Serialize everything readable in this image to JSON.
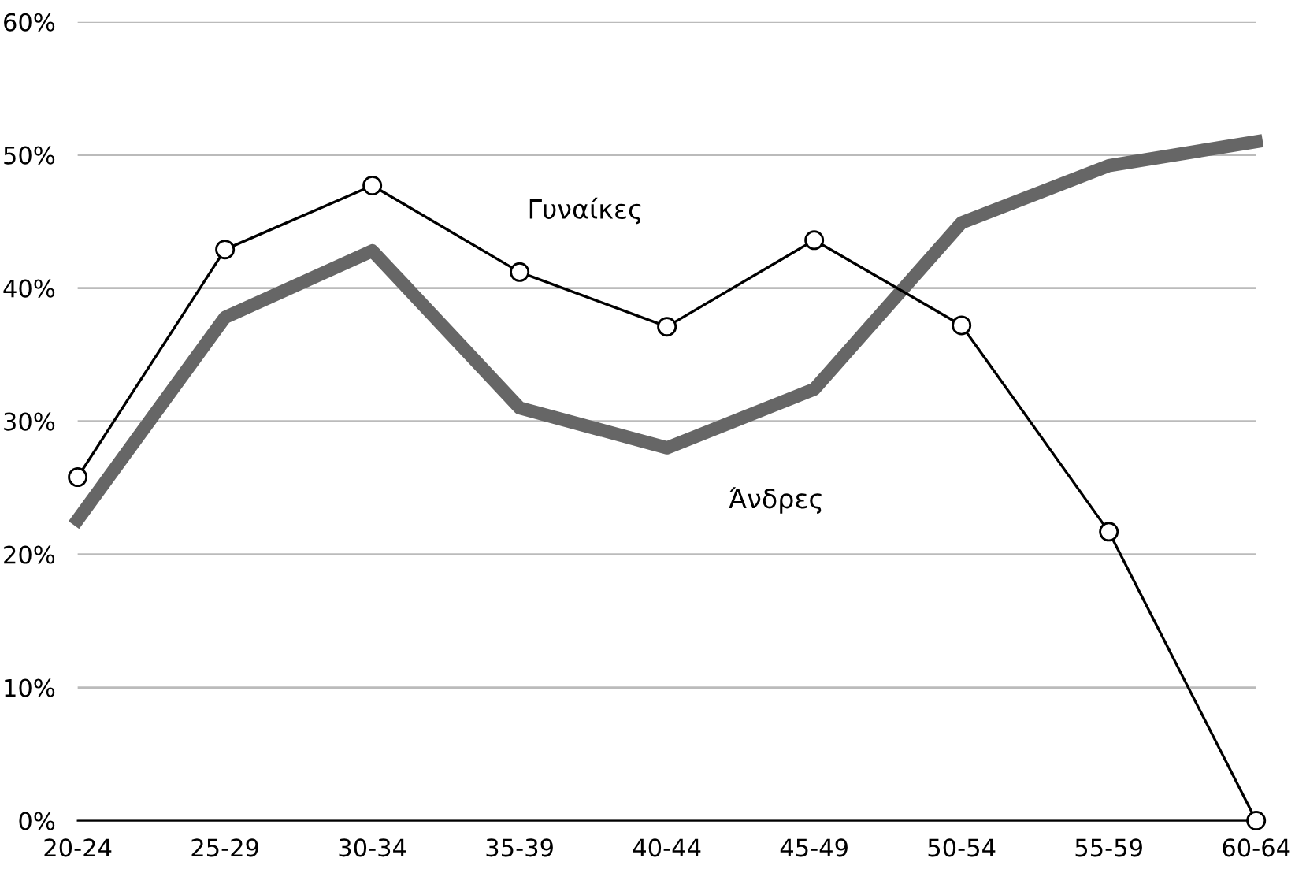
{
  "chart_data": {
    "type": "line",
    "categories": [
      "20-24",
      "25-29",
      "30-34",
      "35-39",
      "40-44",
      "45-49",
      "50-54",
      "55-59",
      "60-64"
    ],
    "series": [
      {
        "name": "Γυναίκες",
        "color": "#000000",
        "marker": "circle",
        "values": [
          25.8,
          42.9,
          47.7,
          41.2,
          37.1,
          43.6,
          37.2,
          21.7,
          0
        ]
      },
      {
        "name": "Άνδρες",
        "color": "#666666",
        "marker": "none",
        "values": [
          22.6,
          37.8,
          42.8,
          31.0,
          28.0,
          32.4,
          44.9,
          49.2,
          51.0
        ]
      }
    ],
    "ylim": [
      0,
      60
    ],
    "yticks": [
      {
        "value": 0,
        "label": "0%"
      },
      {
        "value": 10,
        "label": "10%"
      },
      {
        "value": 20,
        "label": "20%"
      },
      {
        "value": 30,
        "label": "30%"
      },
      {
        "value": 40,
        "label": "40%"
      },
      {
        "value": 50,
        "label": "50%"
      },
      {
        "value": 60,
        "label": "60%"
      }
    ],
    "grid": "y",
    "legend": false
  }
}
